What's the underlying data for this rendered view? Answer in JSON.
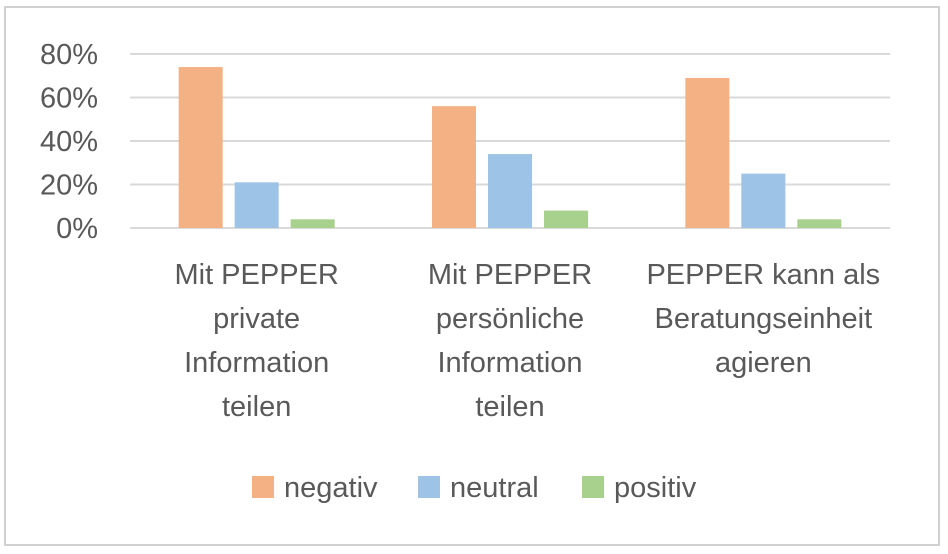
{
  "chart_data": {
    "type": "bar",
    "title": "",
    "xlabel": "",
    "ylabel": "",
    "ylim": [
      0,
      0.8
    ],
    "yticks": [
      "0%",
      "20%",
      "40%",
      "60%",
      "80%"
    ],
    "ytick_values": [
      0,
      0.2,
      0.4,
      0.6,
      0.8
    ],
    "categories": [
      [
        "Mit PEPPER",
        "private",
        "Information",
        "teilen"
      ],
      [
        "Mit PEPPER",
        "persönliche",
        "Information",
        "teilen"
      ],
      [
        "PEPPER kann als",
        "Beratungseinheit",
        "agieren"
      ]
    ],
    "series": [
      {
        "name": "negativ",
        "color": "#F4B183",
        "values": [
          0.74,
          0.56,
          0.69
        ]
      },
      {
        "name": "neutral",
        "color": "#9DC3E6",
        "values": [
          0.21,
          0.34,
          0.25
        ]
      },
      {
        "name": "positiv",
        "color": "#A9D18E",
        "values": [
          0.04,
          0.08,
          0.04
        ]
      }
    ],
    "grid": true,
    "legend_position": "bottom"
  }
}
